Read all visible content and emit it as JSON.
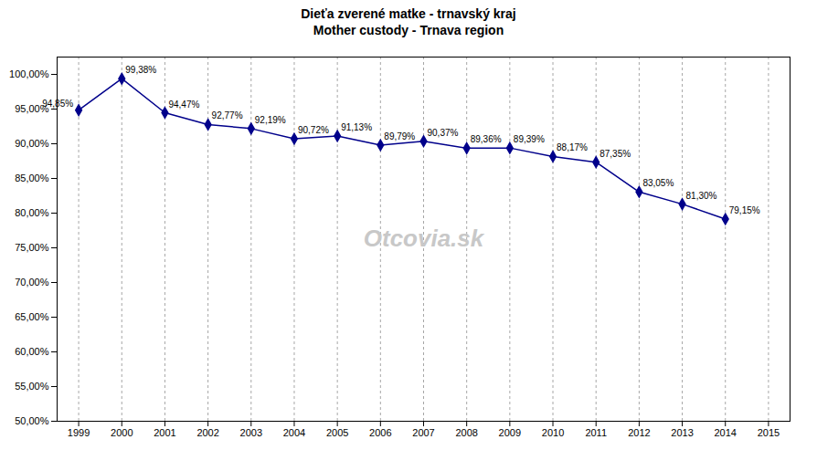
{
  "chart_data": {
    "type": "line",
    "title": "Dieťa zverené matke - trnavský kraj",
    "subtitle": "Mother custody - Trnava region",
    "x": [
      1999,
      2000,
      2001,
      2002,
      2003,
      2004,
      2005,
      2006,
      2007,
      2008,
      2009,
      2010,
      2011,
      2012,
      2013,
      2014
    ],
    "values": [
      94.85,
      99.38,
      94.47,
      92.77,
      92.19,
      90.72,
      91.13,
      89.79,
      90.37,
      89.36,
      89.39,
      88.17,
      87.35,
      83.05,
      81.3,
      79.15
    ],
    "value_labels": [
      "94,85%",
      "99,38%",
      "94,47%",
      "92,77%",
      "92,19%",
      "90,72%",
      "91,13%",
      "89,79%",
      "90,37%",
      "89,36%",
      "89,39%",
      "88,17%",
      "87,35%",
      "83,05%",
      "81,30%",
      "79,15%"
    ],
    "data_labels": true,
    "color": "#00008B",
    "marker": "diamond",
    "grid": "x",
    "annotations": [
      "Otcovia.sk"
    ],
    "xlim": [
      1998.5,
      2015.5
    ],
    "xticks": [
      1999,
      2000,
      2001,
      2002,
      2003,
      2004,
      2005,
      2006,
      2007,
      2008,
      2009,
      2010,
      2011,
      2012,
      2013,
      2014,
      2015
    ],
    "ylim": [
      50.0,
      102.5
    ],
    "yticks": [
      {
        "value": 50.0,
        "label": "50,00%"
      },
      {
        "value": 55.0,
        "label": "55,00%"
      },
      {
        "value": 60.0,
        "label": "60,00%"
      },
      {
        "value": 65.0,
        "label": "65,00%"
      },
      {
        "value": 70.0,
        "label": "70,00%"
      },
      {
        "value": 75.0,
        "label": "75,00%"
      },
      {
        "value": 80.0,
        "label": "80,00%"
      },
      {
        "value": 85.0,
        "label": "85,00%"
      },
      {
        "value": 90.0,
        "label": "90,00%"
      },
      {
        "value": 95.0,
        "label": "95,00%"
      },
      {
        "value": 100.0,
        "label": "100,00%"
      }
    ]
  }
}
